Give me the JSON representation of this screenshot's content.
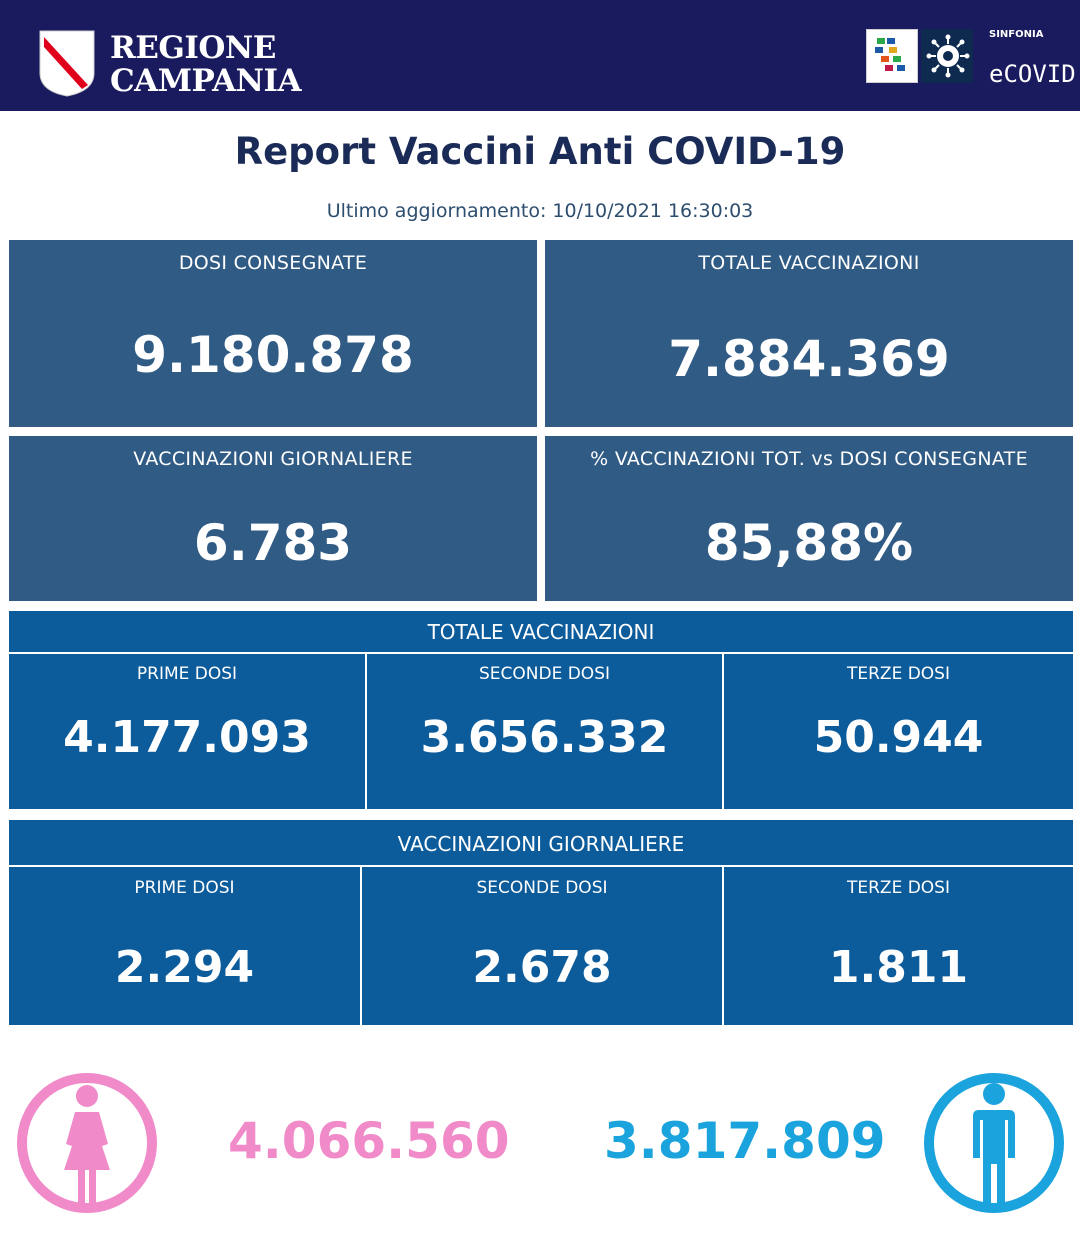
{
  "header": {
    "brand_line1": "REGIONE",
    "brand_line2": "CAMPANIA",
    "partner_small": "SINFONIA",
    "partner_name": "eCOVID",
    "bg_color": "#1a1a5e"
  },
  "title": "Report Vaccini Anti COVID-19",
  "updated": "Ultimo aggiornamento: 10/10/2021  16:30:03",
  "cards": [
    {
      "label": "DOSI  CONSEGNATE",
      "value": "9.180.878"
    },
    {
      "label": "TOTALE VACCINAZIONI",
      "value": "7.884.369"
    },
    {
      "label": "VACCINAZIONI GIORNALIERE",
      "value": "6.783"
    },
    {
      "label": "% VACCINAZIONI TOT. vs DOSI CONSEGNATE",
      "value": "85,88%"
    }
  ],
  "totale_band": {
    "title": "TOTALE VACCINAZIONI",
    "cols": [
      {
        "label": "PRIME DOSI",
        "value": "4.177.093"
      },
      {
        "label": "SECONDE DOSI",
        "value": "3.656.332"
      },
      {
        "label": "TERZE DOSI",
        "value": "50.944"
      }
    ]
  },
  "giornaliere_band": {
    "title": "VACCINAZIONI GIORNALIERE",
    "cols": [
      {
        "label": "PRIME DOSI",
        "value": "2.294"
      },
      {
        "label": "SECONDE DOSI",
        "value": "2.678"
      },
      {
        "label": "TERZE DOSI",
        "value": "1.811"
      }
    ]
  },
  "gender": {
    "female": {
      "value": "4.066.560",
      "icon": "female-icon",
      "color": "#f08ac8"
    },
    "male": {
      "value": "3.817.809",
      "icon": "male-icon",
      "color": "#1aa3dc"
    }
  },
  "colors": {
    "card_bg": "#305b85",
    "band_bg": "#0c5b9b",
    "title": "#1b2b57"
  }
}
